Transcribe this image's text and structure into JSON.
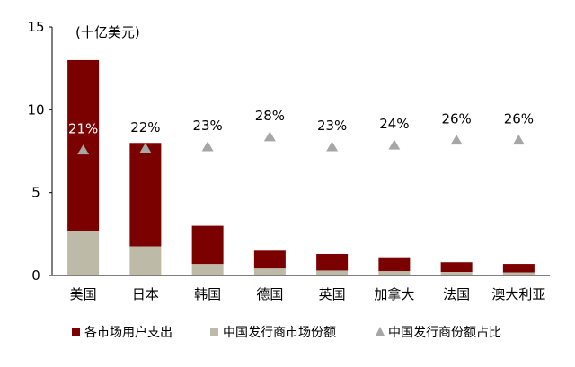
{
  "chart_data": {
    "type": "bar",
    "stacked": true,
    "unit_label": "(十亿美元)",
    "categories": [
      "美国",
      "日本",
      "韩国",
      "德国",
      "英国",
      "加拿大",
      "法国",
      "澳大利亚"
    ],
    "series": [
      {
        "name": "各市场用户支出",
        "kind": "bar",
        "values": [
          13.0,
          8.0,
          3.0,
          1.5,
          1.3,
          1.1,
          0.8,
          0.7
        ],
        "color": "#7B0000"
      },
      {
        "name": "中国发行商市场份额",
        "kind": "bar",
        "values": [
          2.7,
          1.76,
          0.69,
          0.42,
          0.3,
          0.26,
          0.21,
          0.18
        ],
        "color": "#BDBBA8"
      },
      {
        "name": "中国发行商份额占比",
        "kind": "marker",
        "values": [
          7.6,
          7.7,
          7.8,
          8.4,
          7.8,
          7.9,
          8.2,
          8.2
        ],
        "color": "#A6A6A6"
      }
    ],
    "share_labels": [
      "21%",
      "22%",
      "23%",
      "28%",
      "23%",
      "24%",
      "26%",
      "26%"
    ],
    "ylim": [
      0,
      15
    ],
    "yticks": [
      0,
      5,
      10,
      15
    ],
    "legend_position": "bottom",
    "grid": false
  }
}
